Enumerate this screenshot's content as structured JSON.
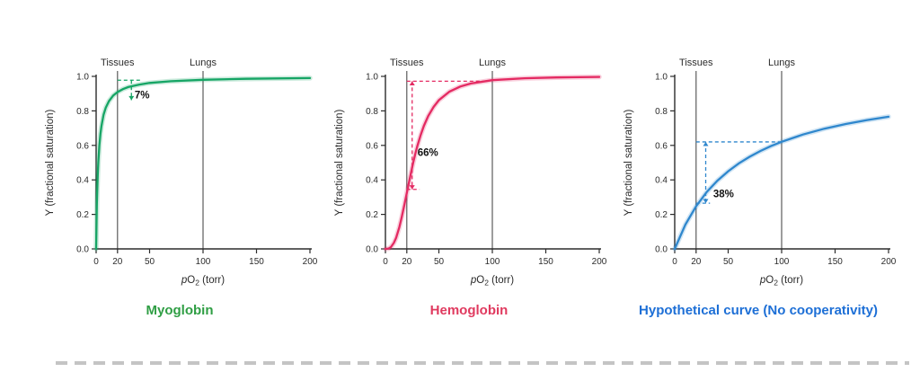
{
  "page": {
    "background": "#ffffff"
  },
  "chart_data": [
    {
      "type": "line",
      "title": "Myoglobin",
      "color": "#16a565",
      "caption_color": "#2f9e44",
      "xlabel": "pO2 (torr)",
      "ylabel": "Y (fractional saturation)",
      "xlim": [
        0,
        200
      ],
      "ylim": [
        0,
        1.0
      ],
      "xticks": [
        0,
        20,
        50,
        100,
        150,
        200
      ],
      "yticks": [
        0.0,
        0.2,
        0.4,
        0.6,
        0.8,
        1.0
      ],
      "grid": false,
      "ref_lines": [
        {
          "x": 20,
          "label": "Tissues"
        },
        {
          "x": 100,
          "label": "Lungs"
        }
      ],
      "points": [
        [
          0,
          0
        ],
        [
          0.3,
          0.13
        ],
        [
          0.7,
          0.26
        ],
        [
          1,
          0.333
        ],
        [
          1.5,
          0.429
        ],
        [
          2,
          0.5
        ],
        [
          3,
          0.6
        ],
        [
          4,
          0.667
        ],
        [
          5,
          0.714
        ],
        [
          7,
          0.778
        ],
        [
          9,
          0.818
        ],
        [
          12,
          0.857
        ],
        [
          16,
          0.889
        ],
        [
          20,
          0.909
        ],
        [
          25,
          0.926
        ],
        [
          30,
          0.938
        ],
        [
          40,
          0.952
        ],
        [
          50,
          0.962
        ],
        [
          70,
          0.972
        ],
        [
          100,
          0.98
        ],
        [
          140,
          0.986
        ],
        [
          200,
          0.99
        ]
      ],
      "annotation": {
        "label": "7%",
        "label_x": 36,
        "label_y": 0.872,
        "lines": [
          {
            "type": "h",
            "y": 0.978,
            "x1": 20,
            "x2": 42
          },
          {
            "type": "v",
            "x": 33,
            "y1": 0.978,
            "y2": 0.862,
            "arrows": "end"
          }
        ]
      }
    },
    {
      "type": "line",
      "title": "Hemoglobin",
      "color": "#e42a62",
      "caption_color": "#e03a5f",
      "xlabel": "pO2 (torr)",
      "ylabel": "Y (fractional saturation)",
      "xlim": [
        0,
        200
      ],
      "ylim": [
        0,
        1.0
      ],
      "xticks": [
        0,
        20,
        50,
        100,
        150,
        200
      ],
      "yticks": [
        0.0,
        0.2,
        0.4,
        0.6,
        0.8,
        1.0
      ],
      "grid": false,
      "ref_lines": [
        {
          "x": 20,
          "label": "Tissues"
        },
        {
          "x": 100,
          "label": "Lungs"
        }
      ],
      "points": [
        [
          0,
          0
        ],
        [
          3,
          0.002
        ],
        [
          5,
          0.01
        ],
        [
          8,
          0.036
        ],
        [
          10,
          0.064
        ],
        [
          13,
          0.126
        ],
        [
          15,
          0.176
        ],
        [
          18,
          0.263
        ],
        [
          20,
          0.324
        ],
        [
          22,
          0.385
        ],
        [
          24,
          0.444
        ],
        [
          26,
          0.5
        ],
        [
          28,
          0.552
        ],
        [
          30,
          0.599
        ],
        [
          33,
          0.661
        ],
        [
          36,
          0.713
        ],
        [
          40,
          0.77
        ],
        [
          45,
          0.823
        ],
        [
          50,
          0.862
        ],
        [
          60,
          0.912
        ],
        [
          70,
          0.941
        ],
        [
          80,
          0.959
        ],
        [
          100,
          0.978
        ],
        [
          130,
          0.989
        ],
        [
          160,
          0.994
        ],
        [
          200,
          0.997
        ]
      ],
      "annotation": {
        "label": "66%",
        "label_x": 30,
        "label_y": 0.54,
        "lines": [
          {
            "type": "h",
            "y": 0.972,
            "x1": 20,
            "x2": 92
          },
          {
            "type": "h",
            "y": 0.345,
            "x1": 20,
            "x2": 32
          },
          {
            "type": "v",
            "x": 25,
            "y1": 0.972,
            "y2": 0.345,
            "arrows": "both"
          }
        ]
      }
    },
    {
      "type": "line",
      "title": "Hypothetical curve (No cooperativity)",
      "color": "#2f87cd",
      "caption_color": "#1d6fd6",
      "xlabel": "pO2 (torr)",
      "ylabel": "Y (fractional saturation)",
      "xlim": [
        0,
        200
      ],
      "ylim": [
        0,
        1.0
      ],
      "xticks": [
        0,
        20,
        50,
        100,
        150,
        200
      ],
      "yticks": [
        0.0,
        0.2,
        0.4,
        0.6,
        0.8,
        1.0
      ],
      "grid": false,
      "ref_lines": [
        {
          "x": 20,
          "label": "Tissues"
        },
        {
          "x": 100,
          "label": "Lungs"
        }
      ],
      "points": [
        [
          0,
          0
        ],
        [
          10,
          0.141
        ],
        [
          20,
          0.247
        ],
        [
          30,
          0.33
        ],
        [
          40,
          0.396
        ],
        [
          50,
          0.45
        ],
        [
          60,
          0.496
        ],
        [
          70,
          0.534
        ],
        [
          80,
          0.567
        ],
        [
          90,
          0.596
        ],
        [
          100,
          0.621
        ],
        [
          120,
          0.663
        ],
        [
          140,
          0.697
        ],
        [
          160,
          0.724
        ],
        [
          180,
          0.747
        ],
        [
          200,
          0.766
        ]
      ],
      "annotation": {
        "label": "38%",
        "label_x": 36,
        "label_y": 0.3,
        "lines": [
          {
            "type": "h",
            "y": 0.62,
            "x1": 20,
            "x2": 100
          },
          {
            "type": "h",
            "y": 0.265,
            "x1": 20,
            "x2": 33
          },
          {
            "type": "v",
            "x": 29,
            "y1": 0.62,
            "y2": 0.265,
            "arrows": "both"
          }
        ]
      }
    }
  ]
}
